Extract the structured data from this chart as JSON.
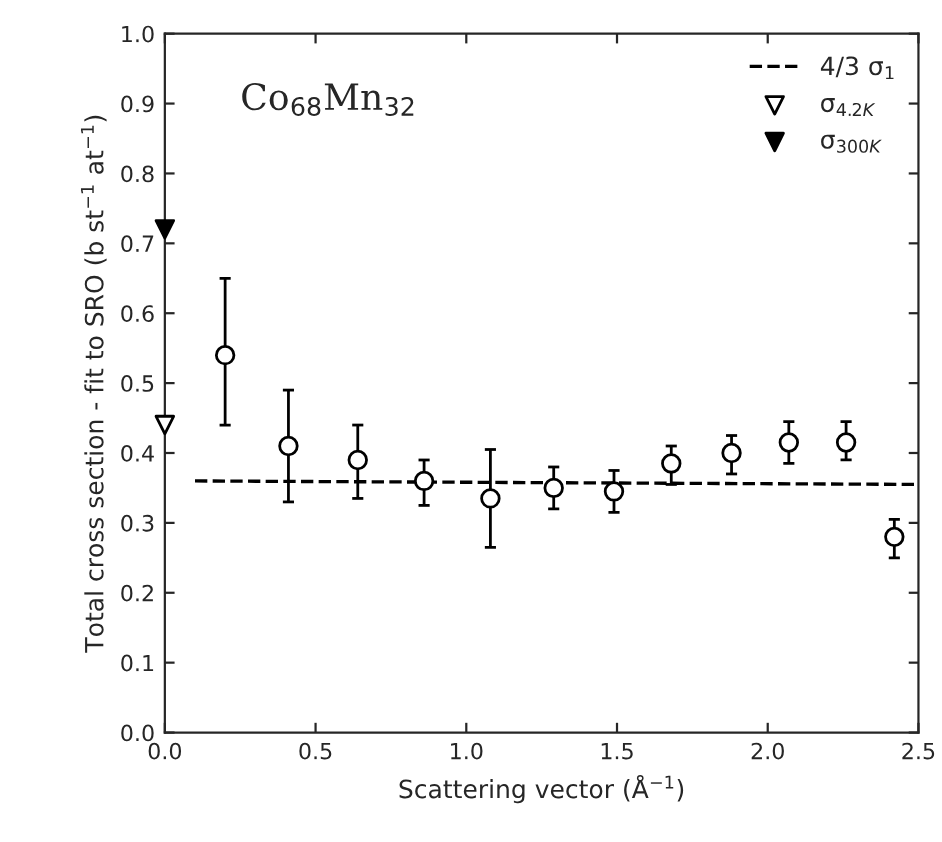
{
  "chart_data": {
    "type": "scatter",
    "xlabel": "Scattering vector (Å$^{−1}$)",
    "ylabel": "Total cross section - fit to SRO (b st$^{−1}$ at$^{−1}$)",
    "annotations": [
      "Co$_{68}$Mn$_{32}$"
    ],
    "xlim": [
      0,
      2.5
    ],
    "xticks": [
      {
        "value": 0,
        "label": "0.0"
      },
      0.5,
      {
        "value": 1,
        "label": "1.0"
      },
      1.5,
      {
        "value": 2,
        "label": "2.0"
      },
      2.5
    ],
    "ylim": [
      0,
      1
    ],
    "yticks": [
      {
        "value": 0,
        "label": "0.0"
      },
      0.1,
      0.2,
      0.3,
      0.4,
      0.5,
      0.6,
      0.7,
      0.8,
      0.9,
      {
        "value": 1,
        "label": "1.0"
      }
    ],
    "grid": false,
    "legend": "top right",
    "series": [
      {
        "type": "line",
        "name": "4/3 σ$_{1}$",
        "color": "#000000",
        "line_style": "dashed",
        "marker": "none",
        "x": [
          0.1,
          2.5
        ],
        "values": [
          0.36,
          0.355
        ]
      },
      {
        "name": "σ$_{4.2K}$",
        "color": "#ffffff",
        "marker": "triangle",
        "x": [
          0.0
        ],
        "values": [
          0.44
        ]
      },
      {
        "name": "σ$_{300K}$",
        "color": "#000000",
        "marker": "triangle",
        "x": [
          0.0
        ],
        "values": [
          0.72
        ]
      },
      {
        "color": "#ffffff",
        "marker": "circle",
        "x": [
          0.2,
          0.41,
          0.64,
          0.86,
          1.08,
          1.29,
          1.49,
          1.68,
          1.88,
          2.07,
          2.26,
          2.42
        ],
        "values": [
          0.54,
          0.41,
          0.39,
          0.36,
          0.335,
          0.35,
          0.345,
          0.385,
          0.4,
          0.415,
          0.415,
          0.28
        ],
        "errors": [
          [
            0.44,
            0.65
          ],
          [
            0.33,
            0.49
          ],
          [
            0.335,
            0.44
          ],
          [
            0.325,
            0.39
          ],
          [
            0.265,
            0.405
          ],
          [
            0.32,
            0.38
          ],
          [
            0.315,
            0.375
          ],
          [
            0.355,
            0.41
          ],
          [
            0.37,
            0.425
          ],
          [
            0.385,
            0.445
          ],
          [
            0.39,
            0.445
          ],
          [
            0.25,
            0.305
          ]
        ]
      }
    ]
  }
}
